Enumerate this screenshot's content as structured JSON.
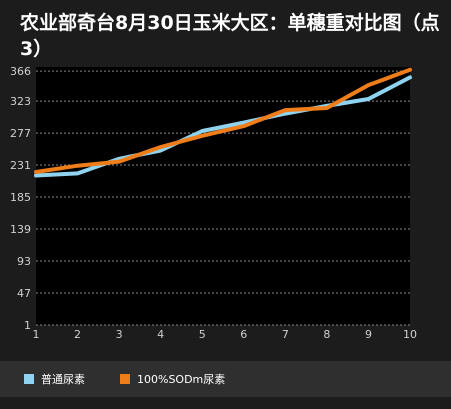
{
  "title": "农业部奇台8月30日玉米大区：单穗重对比图（点3）",
  "chart_data": {
    "type": "line",
    "title": "农业部奇台8月30日玉米大区：单穗重对比图（点3）",
    "x": [
      1,
      2,
      3,
      4,
      5,
      6,
      7,
      8,
      9,
      10
    ],
    "xticks": [
      "1",
      "2",
      "3",
      "4",
      "5",
      "6",
      "7",
      "8",
      "9",
      "10"
    ],
    "yticks": [
      1,
      47,
      93,
      139,
      185,
      231,
      277,
      323,
      366
    ],
    "ylim": [
      1,
      372
    ],
    "grid": true,
    "legend_position": "bottom",
    "series": [
      {
        "name": "普通尿素",
        "color": "#8fd3f0",
        "values": [
          216,
          219,
          240,
          252,
          280,
          292,
          305,
          316,
          326,
          357
        ]
      },
      {
        "name": "100%SODm尿素",
        "color": "#ef7d1a",
        "values": [
          221,
          230,
          236,
          257,
          273,
          287,
          310,
          313,
          346,
          368
        ]
      }
    ]
  }
}
